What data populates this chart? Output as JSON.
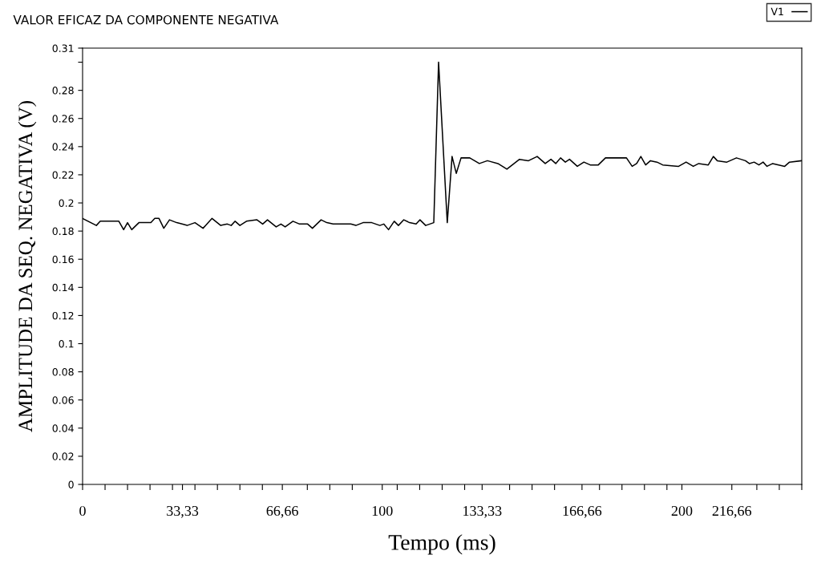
{
  "chart_data": {
    "type": "line",
    "title": "VALOR EFICAZ DA COMPONENTE NEGATIVA",
    "xlabel": "Tempo (ms)",
    "ylabel": "AMPLITUDE DA SEQ. NEGATIVA (V)",
    "xlim": [
      0,
      240
    ],
    "ylim": [
      0,
      0.31
    ],
    "xticks": [
      0,
      {
        "value": 33.33,
        "label": "33,33"
      },
      {
        "value": 66.66,
        "label": "66,66"
      },
      100,
      {
        "value": 133.33,
        "label": "133,33"
      },
      {
        "value": 166.66,
        "label": "166,66"
      },
      200,
      {
        "value": 216.66,
        "label": "216,66"
      },
      {
        "value": 7.5,
        "label": null
      },
      {
        "value": 15,
        "label": null
      },
      {
        "value": 22.5,
        "label": null
      },
      {
        "value": 30,
        "label": null
      },
      {
        "value": 37.5,
        "label": null
      },
      {
        "value": 45,
        "label": null
      },
      {
        "value": 52.5,
        "label": null
      },
      {
        "value": 60,
        "label": null
      },
      {
        "value": 75,
        "label": null
      },
      {
        "value": 82.5,
        "label": null
      },
      {
        "value": 90,
        "label": null
      },
      {
        "value": 105,
        "label": null
      },
      {
        "value": 112.5,
        "label": null
      },
      {
        "value": 120,
        "label": null
      },
      {
        "value": 127.5,
        "label": null
      },
      {
        "value": 142.5,
        "label": null
      },
      {
        "value": 150,
        "label": null
      },
      {
        "value": 157.5,
        "label": null
      },
      {
        "value": 172.5,
        "label": null
      },
      {
        "value": 180,
        "label": null
      },
      {
        "value": 187.5,
        "label": null
      },
      {
        "value": 195,
        "label": null
      },
      {
        "value": 225,
        "label": null
      },
      {
        "value": 232.5,
        "label": null
      },
      {
        "value": 240,
        "label": null
      }
    ],
    "yticks": [
      0,
      0.02,
      0.04,
      0.06,
      0.08,
      0.1,
      0.12,
      0.14,
      0.16,
      0.18,
      0.2,
      0.22,
      0.24,
      0.26,
      0.28,
      {
        "value": 0.3,
        "label": null
      },
      0.31
    ],
    "grid": false,
    "legend": "top right",
    "marker": "none",
    "line_style": "solid",
    "series": [
      {
        "name": "V1",
        "color": "#000000",
        "x": [
          0,
          4.6,
          5.9,
          12.1,
          13.7,
          15,
          16.4,
          18.8,
          20.1,
          22.8,
          24.1,
          25.5,
          27.1,
          29,
          31.4,
          33.2,
          34.9,
          37.5,
          40.2,
          43.2,
          46.1,
          48.3,
          49.6,
          50.9,
          52.5,
          54.7,
          58.2,
          60.1,
          61.7,
          64.6,
          66.2,
          67.6,
          70.2,
          72.4,
          75.1,
          76.7,
          79.6,
          81.5,
          83.6,
          89.5,
          91.2,
          93.6,
          96.5,
          99.2,
          100.5,
          102.1,
          104,
          105.4,
          107.2,
          109.1,
          111.3,
          112.6,
          114.5,
          117.2,
          118.8,
          121.7,
          123.3,
          124.7,
          126.3,
          129.2,
          132.4,
          135.1,
          138.6,
          141.6,
          145.8,
          148.8,
          151.7,
          154.4,
          156.3,
          157.9,
          159.5,
          161.1,
          162.5,
          165.1,
          167.3,
          169.4,
          172.1,
          174.5,
          181.5,
          183.4,
          184.9,
          186.3,
          187.9,
          189.5,
          191.7,
          193.6,
          198.9,
          201.4,
          203.8,
          205.6,
          208.8,
          210.5,
          211.8,
          215,
          218.2,
          221.2,
          222.5,
          224.1,
          225.7,
          227.1,
          228.4,
          230.3,
          234.3,
          235.9,
          240
        ],
        "values": [
          0.189,
          0.184,
          0.187,
          0.187,
          0.181,
          0.186,
          0.181,
          0.186,
          0.186,
          0.186,
          0.189,
          0.189,
          0.182,
          0.188,
          0.186,
          0.185,
          0.184,
          0.186,
          0.182,
          0.189,
          0.184,
          0.185,
          0.184,
          0.187,
          0.184,
          0.187,
          0.188,
          0.185,
          0.188,
          0.183,
          0.185,
          0.183,
          0.187,
          0.185,
          0.185,
          0.182,
          0.188,
          0.186,
          0.185,
          0.185,
          0.184,
          0.186,
          0.186,
          0.184,
          0.185,
          0.181,
          0.187,
          0.184,
          0.188,
          0.186,
          0.185,
          0.188,
          0.184,
          0.186,
          0.3,
          0.186,
          0.233,
          0.221,
          0.232,
          0.232,
          0.228,
          0.23,
          0.228,
          0.224,
          0.231,
          0.23,
          0.233,
          0.228,
          0.231,
          0.228,
          0.232,
          0.229,
          0.231,
          0.226,
          0.229,
          0.227,
          0.227,
          0.232,
          0.232,
          0.226,
          0.228,
          0.233,
          0.227,
          0.23,
          0.229,
          0.227,
          0.226,
          0.229,
          0.226,
          0.228,
          0.227,
          0.233,
          0.23,
          0.229,
          0.232,
          0.23,
          0.228,
          0.229,
          0.227,
          0.229,
          0.226,
          0.228,
          0.226,
          0.229,
          0.23
        ]
      }
    ]
  }
}
